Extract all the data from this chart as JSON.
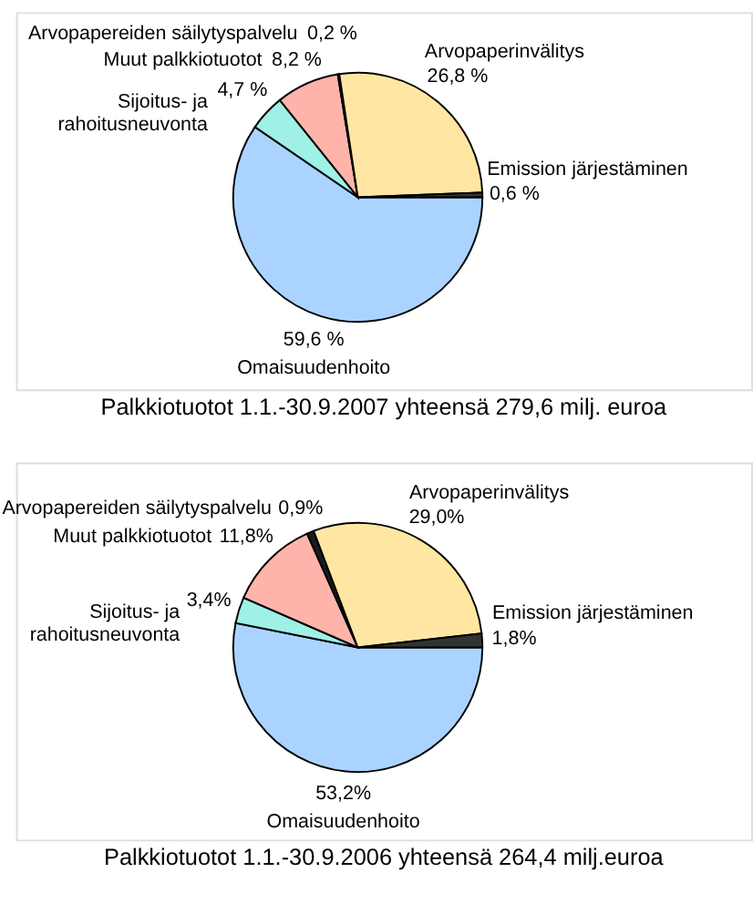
{
  "chart_data": [
    {
      "type": "pie",
      "title": "Palkkiotuotot 1.1.-30.9.2007 yhteensä 279,6 milj. euroa",
      "categories": [
        "Omaisuudenhoito",
        "Sijoitus- ja\nrahoitusneuvonta",
        "Muut palkkiotuotot",
        "Arvopapereiden säilytyspalvelu",
        "Arvopaperinvälitys",
        "Emission järjestäminen"
      ],
      "values": [
        59.6,
        4.7,
        8.2,
        0.2,
        26.8,
        0.6
      ],
      "value_labels": [
        "59,6 %",
        "4,7 %",
        "8,2 %",
        "0,2 %",
        "26,8 %",
        "0,6 %"
      ],
      "colors": [
        "#aad4ff",
        "#9ff0e6",
        "#ffb4ab",
        "#1c1c1c",
        "#ffe7a3",
        "#333333"
      ]
    },
    {
      "type": "pie",
      "title": "Palkkiotuotot 1.1.-30.9.2006 yhteensä 264,4 milj.euroa",
      "categories": [
        "Omaisuudenhoito",
        "Sijoitus- ja\nrahoitusneuvonta",
        "Muut palkkiotuotot",
        "Arvopapereiden säilytyspalvelu",
        "Arvopaperinvälitys",
        "Emission järjestäminen"
      ],
      "values": [
        53.2,
        3.4,
        11.8,
        0.9,
        29.0,
        1.8
      ],
      "value_labels": [
        "53,2%",
        "3,4%",
        "11,8%",
        "0,9%",
        "29,0%",
        "1,8%"
      ],
      "colors": [
        "#aad4ff",
        "#9ff0e6",
        "#ffb4ab",
        "#1c1c1c",
        "#ffe7a3",
        "#333333"
      ]
    }
  ]
}
